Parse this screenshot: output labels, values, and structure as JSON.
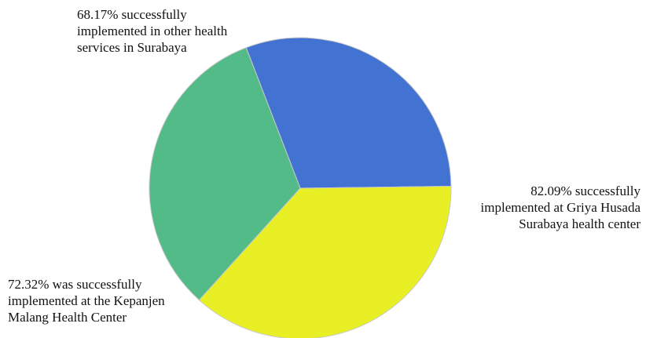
{
  "chart_data": {
    "type": "pie",
    "title": "",
    "slices": [
      {
        "value": 68.17,
        "label_lines": [
          "68.17% successfully",
          "implemented in other health",
          "services in Surabaya"
        ],
        "color": "#4373d2"
      },
      {
        "value": 82.09,
        "label_lines": [
          "82.09% successfully",
          "implemented at Griya Husada",
          "Surabaya health center"
        ],
        "color": "#e8ef24"
      },
      {
        "value": 72.32,
        "label_lines": [
          "72.32% was successfully",
          "implemented at the Kepanjen",
          "Malang Health Center"
        ],
        "color": "#52bb88"
      }
    ],
    "legend": "none"
  }
}
